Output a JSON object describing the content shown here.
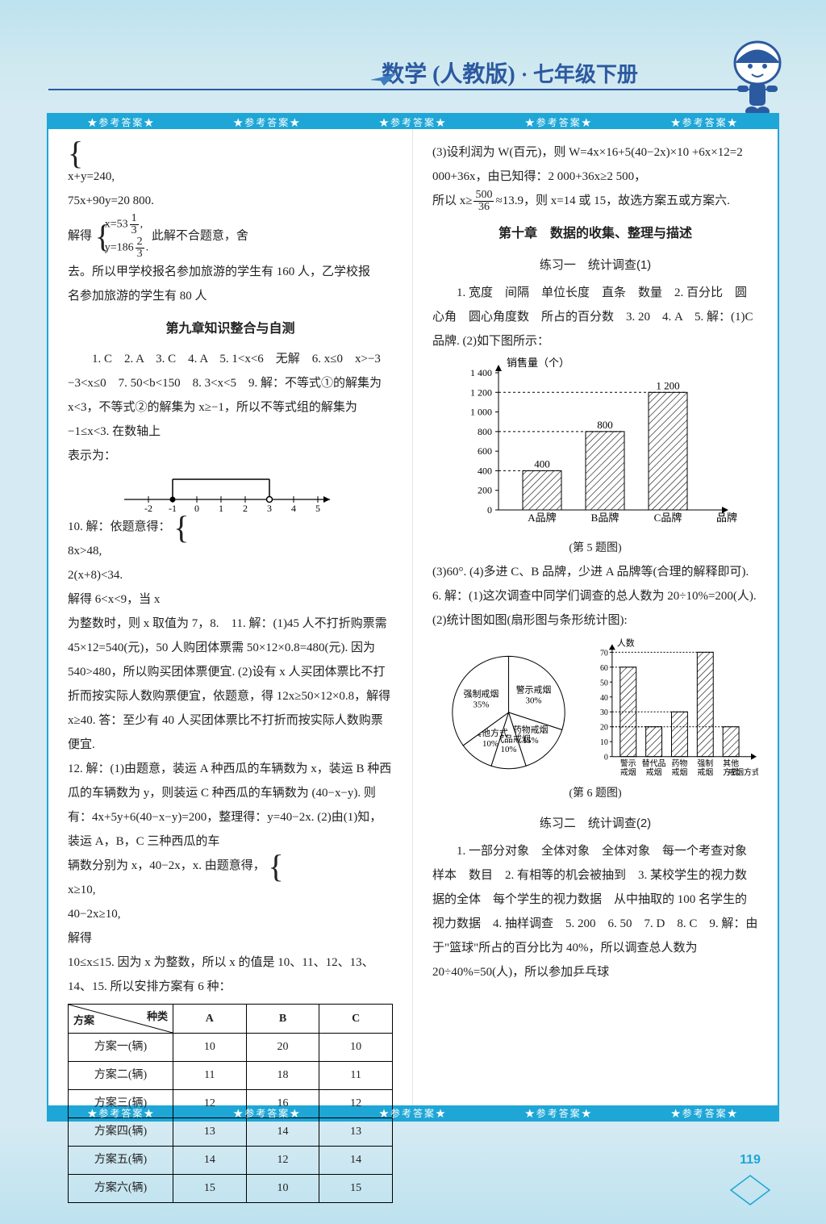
{
  "header": {
    "subject": "数学 (人教版)",
    "grade": "· 七年级下册"
  },
  "ribbon": {
    "label": "★参考答案★",
    "repeat": 5
  },
  "left": {
    "eq1": {
      "l1": "x+y=240,",
      "l2": "75x+90y=20 800."
    },
    "mid": "解得",
    "eq2": {
      "l1": "x=53 1/3 ,",
      "l2": "y=186 2/3 ."
    },
    "eq2_after": "此解不合题意，舍",
    "line1": "去。所以甲学校报名参加旅游的学生有 160 人，乙学校报",
    "line2": "名参加旅游的学生有 80 人",
    "title9": "第九章知识整合与自测",
    "ans_block": "1. C　2. A　3. C　4. A　5. 1<x<6　无解　6. x≤0　x>−3　−3<x≤0　7. 50<b<150　8. 3<x<5　9. 解：不等式①的解集为 x<3，不等式②的解集为 x≥−1，所以不等式组的解集为 −1≤x<3. 在数轴上",
    "numline_label": "表示为：",
    "numline": {
      "min": -2,
      "max": 5,
      "closed": -1,
      "open": 3
    },
    "q10a": "10. 解：依题意得：",
    "q10_eq": {
      "l1": "8x>48,",
      "l2": "2(x+8)<34."
    },
    "q10b": "解得 6<x<9，当 x",
    "q10c": "为整数时，则 x 取值为 7，8.　11. 解：(1)45 人不打折购票需 45×12=540(元)，50 人购团体票需 50×12×0.8=480(元). 因为 540>480，所以购买团体票便宜. (2)设有 x 人买团体票比不打折而按实际人数购票便宜，依题意，得 12x≥50×12×0.8，解得 x≥40. 答：至少有 40 人买团体票比不打折而按实际人数购票便宜.",
    "q12a": "12. 解：(1)由题意，装运 A 种西瓜的车辆数为 x，装运 B 种西瓜的车辆数为 y，则装运 C 种西瓜的车辆数为 (40−x−y). 则有：4x+5y+6(40−x−y)=200，整理得：y=40−2x. (2)由(1)知，装运 A，B，C 三种西瓜的车",
    "q12b": "辆数分别为 x，40−2x，x. 由题意得，",
    "q12_eq": {
      "l1": "x≥10,",
      "l2": "40−2x≥10,"
    },
    "q12c": "解得",
    "q12d": "10≤x≤15. 因为 x 为整数，所以 x 的值是 10、11、12、13、14、15. 所以安排方案有 6 种：",
    "table": {
      "diag_top": "种类",
      "diag_bottom": "方案",
      "cols": [
        "A",
        "B",
        "C"
      ],
      "rows": [
        {
          "label": "方案一(辆)",
          "vals": [
            10,
            20,
            10
          ]
        },
        {
          "label": "方案二(辆)",
          "vals": [
            11,
            18,
            11
          ]
        },
        {
          "label": "方案三(辆)",
          "vals": [
            12,
            16,
            12
          ]
        },
        {
          "label": "方案四(辆)",
          "vals": [
            13,
            14,
            13
          ]
        },
        {
          "label": "方案五(辆)",
          "vals": [
            14,
            12,
            14
          ]
        },
        {
          "label": "方案六(辆)",
          "vals": [
            15,
            10,
            15
          ]
        }
      ]
    }
  },
  "right": {
    "q3": "(3)设利润为 W(百元)，则 W=4x×16+5(40−2x)×10 +6x×12=2 000+36x，由已知得：2 000+36x≥2 500，",
    "q3b_pre": "所以 x≥",
    "q3b_frac_n": "500",
    "q3b_frac_d": "36",
    "q3b_post": "≈13.9，则 x=14 或 15，故选方案五或方案六.",
    "title10": "第十章　数据的收集、整理与描述",
    "sub1": "练习一　统计调查(1)",
    "p1a": "1. 宽度　间隔　单位长度　直条　数量　2. 百分比　圆心角　圆心角度数　所占的百分数　3. 20　4. A　5. 解：(1)C 品牌. (2)如下图所示：",
    "bar": {
      "ylabel": "销售量（个）",
      "xlabel": "品牌",
      "yticks": [
        0,
        200,
        400,
        600,
        800,
        1000,
        1200,
        1400
      ],
      "ylim": [
        0,
        1400
      ],
      "cats": [
        "A品牌",
        "B品牌",
        "C品牌"
      ],
      "vals": [
        400,
        800,
        1200
      ],
      "labels": [
        "400",
        "800",
        "1 200"
      ],
      "cap": "(第 5 题图)"
    },
    "p1b": "(3)60°. (4)多进 C、B 品牌，少进 A 品牌等(合理的解释即可).　6. 解：(1)这次调查中同学们调查的总人数为 20÷10%=200(人). (2)统计图如图(扇形图与条形统计图):",
    "pie": {
      "slices": [
        {
          "label": "警示戒烟30%",
          "pct": 30
        },
        {
          "label": "药物戒烟15%",
          "pct": 15
        },
        {
          "label": "替代品戒烟10%",
          "pct": 10
        },
        {
          "label": "其他方式10%",
          "pct": 10
        },
        {
          "label": "强制戒烟35%",
          "pct": 35
        }
      ]
    },
    "bar2": {
      "ylabel": "人数",
      "yticks": [
        0,
        10,
        20,
        30,
        40,
        50,
        60,
        70
      ],
      "ylim": [
        0,
        70
      ],
      "cats": [
        "警示戒烟",
        "替代品戒烟",
        "药物戒烟",
        "强制戒烟",
        "其他方式"
      ],
      "vals": [
        60,
        20,
        30,
        70,
        20
      ],
      "xlabel": "戒烟方式",
      "cap": "(第 6 题图)"
    },
    "sub2": "练习二　统计调查(2)",
    "p2": "1. 一部分对象　全体对象　全体对象　每一个考查对象　样本　数目　2. 有相等的机会被抽到　3. 某校学生的视力数据的全体　每个学生的视力数据　从中抽取的 100 名学生的视力数据　4. 抽样调查　5. 200　6. 50　7. D　8. C　9. 解：由于\"篮球\"所占的百分比为 40%，所以调查总人数为 20÷40%=50(人)，所以参加乒乓球"
  },
  "pagenum": "119"
}
